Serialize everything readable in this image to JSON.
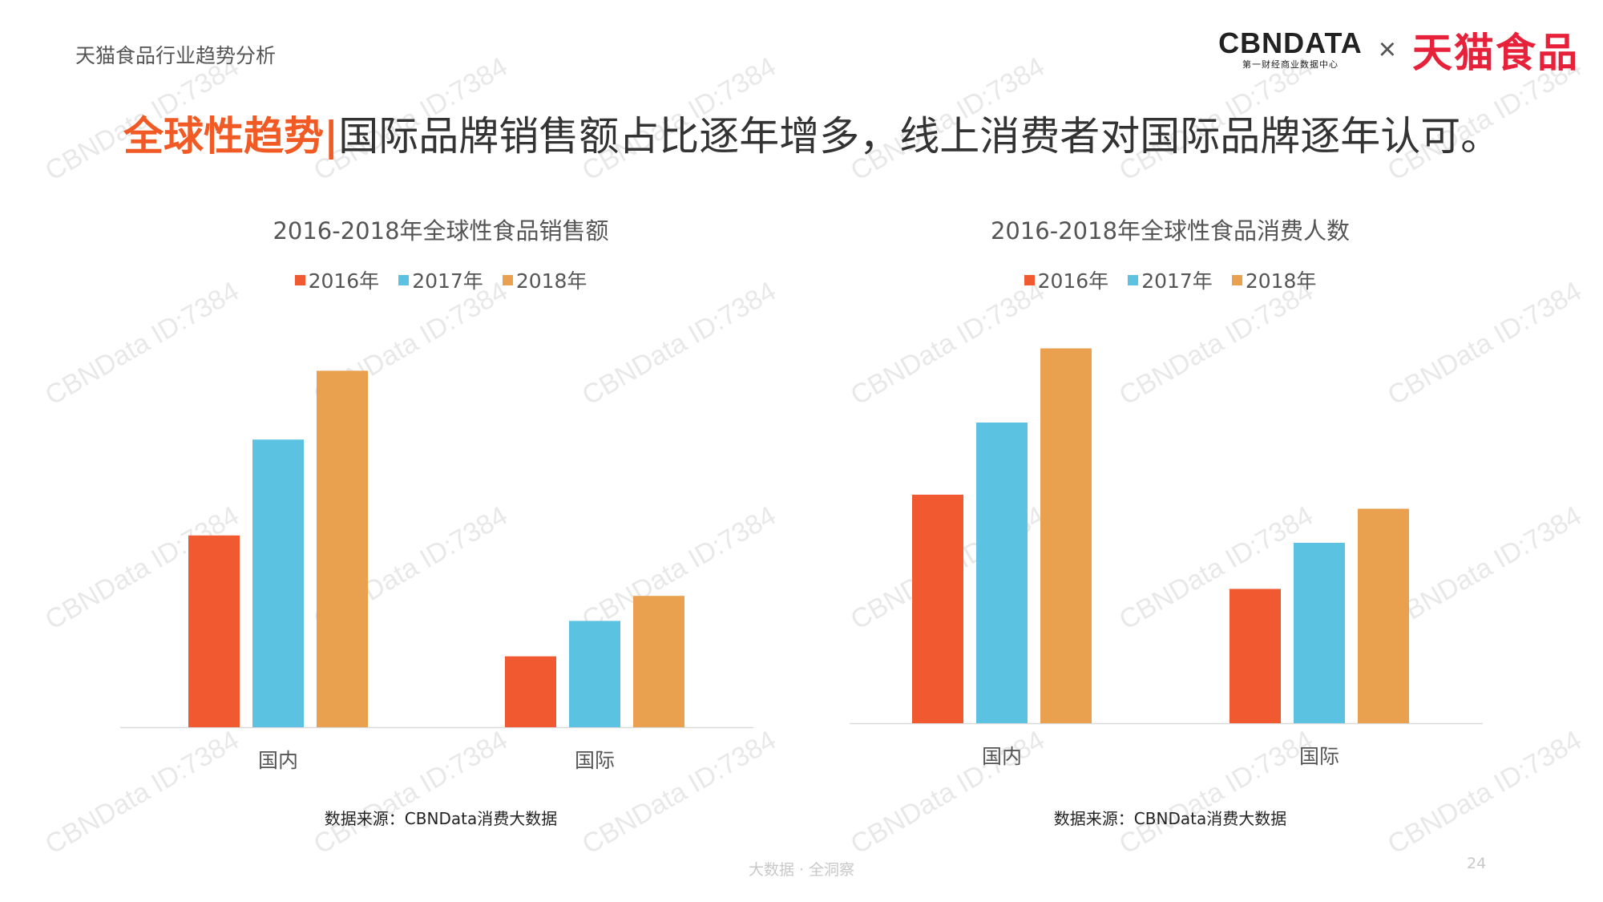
{
  "header": {
    "report_name": "天猫食品行业趋势分析",
    "cbn_logo": "CBNDATA",
    "cbn_subtitle": "第一财经商业数据中心",
    "times_sign": "×",
    "tmall_logo": "天猫食品"
  },
  "headline": {
    "accent": "全球性趋势|",
    "text": "国际品牌销售额占比逐年增多，线上消费者对国际品牌逐年认可。"
  },
  "watermark_text": "CBNData ID:7384",
  "colors": {
    "s2016": "#f15a31",
    "s2017": "#5bc2e2",
    "s2018": "#e9a150",
    "axis": "#d9d9d9"
  },
  "chart_data": [
    {
      "type": "bar",
      "title": "2016-2018年全球性食品销售额",
      "categories": [
        "国内",
        "国际"
      ],
      "series": [
        {
          "name": "2016年",
          "values": [
            46,
            17
          ]
        },
        {
          "name": "2017年",
          "values": [
            69,
            25.5
          ]
        },
        {
          "name": "2018年",
          "values": [
            85.5,
            31.5
          ]
        }
      ],
      "ylim": [
        0,
        100
      ],
      "grid": false,
      "legend": "top-center",
      "source": "数据来源：CBNData消费大数据"
    },
    {
      "type": "bar",
      "title": "2016-2018年全球性食品消费人数",
      "categories": [
        "国内",
        "国际"
      ],
      "series": [
        {
          "name": "2016年",
          "values": [
            57,
            33.5
          ]
        },
        {
          "name": "2017年",
          "values": [
            75,
            45
          ]
        },
        {
          "name": "2018年",
          "values": [
            93.5,
            53.5
          ]
        }
      ],
      "ylim": [
        0,
        100
      ],
      "grid": false,
      "legend": "top-center",
      "source": "数据来源：CBNData消费大数据"
    }
  ],
  "footer": {
    "slogan": "大数据 · 全洞察",
    "page_number": "24"
  }
}
